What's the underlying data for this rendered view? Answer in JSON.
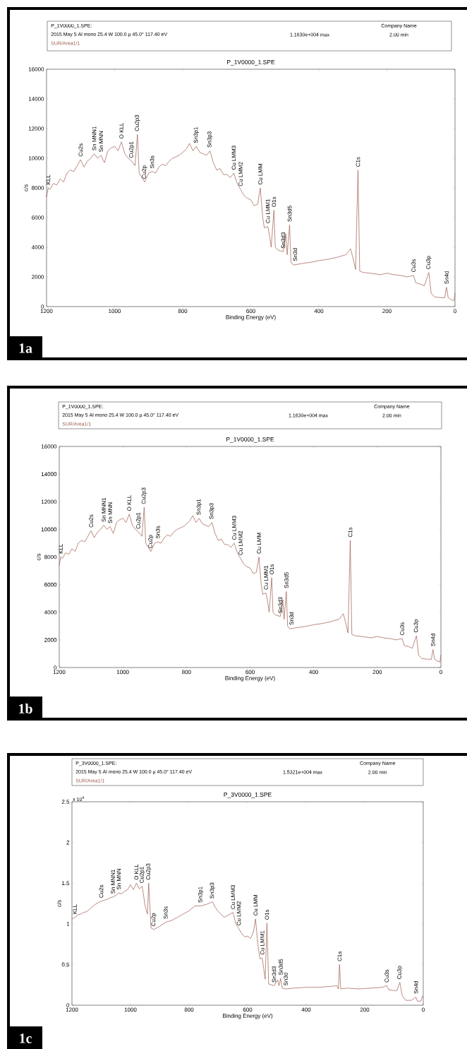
{
  "chart_data": [
    {
      "type": "line",
      "title": "P_1V0000_1.SPE",
      "xlabel": "Binding Energy (eV)",
      "ylabel": "c/s",
      "xlim": [
        1200,
        0
      ],
      "xticks": [
        1200,
        1000,
        800,
        600,
        400,
        200,
        0
      ],
      "ylim": [
        0,
        16000
      ],
      "yticks": [
        0,
        2000,
        4000,
        6000,
        8000,
        10000,
        12000,
        14000,
        16000
      ],
      "x": [
        1200,
        1195,
        1190,
        1180,
        1170,
        1160,
        1150,
        1140,
        1130,
        1120,
        1110,
        1100,
        1090,
        1080,
        1070,
        1060,
        1050,
        1040,
        1030,
        1020,
        1010,
        1000,
        990,
        980,
        970,
        960,
        950,
        940,
        933,
        928,
        920,
        912,
        900,
        890,
        880,
        870,
        860,
        850,
        840,
        830,
        820,
        810,
        800,
        790,
        780,
        770,
        760,
        750,
        740,
        730,
        720,
        710,
        700,
        690,
        680,
        670,
        660,
        650,
        640,
        630,
        620,
        610,
        600,
        590,
        580,
        572,
        565,
        560,
        550,
        545,
        540,
        532,
        528,
        520,
        505,
        497,
        493,
        486,
        482,
        475,
        450,
        420,
        400,
        370,
        350,
        320,
        307,
        300,
        292,
        285,
        280,
        270,
        250,
        220,
        200,
        180,
        160,
        140,
        122,
        115,
        100,
        90,
        77,
        70,
        60,
        40,
        30,
        25,
        20,
        10,
        3,
        0
      ],
      "series": [
        {
          "name": "SUR/Area1/1",
          "color": "#9c5a4a",
          "values": [
            7400,
            8000,
            7900,
            8300,
            8200,
            8600,
            8400,
            9000,
            9200,
            9100,
            9500,
            9900,
            9400,
            9800,
            10000,
            10300,
            10000,
            10200,
            9700,
            10500,
            10700,
            10800,
            10500,
            11100,
            10300,
            10000,
            9800,
            9500,
            11600,
            9000,
            8700,
            8400,
            9000,
            9100,
            9000,
            9400,
            9600,
            9500,
            9800,
            10000,
            10100,
            10200,
            10400,
            10600,
            11000,
            10500,
            10800,
            10400,
            10300,
            10200,
            10500,
            9700,
            9200,
            9300,
            8900,
            8900,
            8700,
            9000,
            8300,
            7900,
            7500,
            7300,
            7200,
            6800,
            6900,
            8000,
            6000,
            5300,
            5400,
            4800,
            4000,
            6500,
            4000,
            3800,
            3700,
            4900,
            3500,
            5500,
            3000,
            2800,
            2900,
            3000,
            3100,
            3200,
            3300,
            3500,
            3900,
            3300,
            2500,
            9200,
            2400,
            2300,
            2250,
            2150,
            2250,
            2150,
            2100,
            2000,
            2100,
            1600,
            1500,
            1400,
            2300,
            900,
            650,
            600,
            600,
            1300,
            600,
            450,
            400,
            900
          ]
        }
      ],
      "annotations": [
        "P_1V0000_1.SPE:",
        "2015 May 5 Al mono 25.4 W 100.0 µ 45.0° 117.40 eV",
        "1.1630e+004 max",
        "Company Name",
        "2.00 min",
        "1a",
        {
          "text": "KLL",
          "x": 1195,
          "y": 8000
        },
        {
          "text": "Cu2s",
          "x": 1100,
          "y": 9900
        },
        {
          "text": "Sn MNN1",
          "x": 1060,
          "y": 10300
        },
        {
          "text": "Sn MNN",
          "x": 1040,
          "y": 10200
        },
        {
          "text": "O KLL",
          "x": 980,
          "y": 11100
        },
        {
          "text": "Cu2p1",
          "x": 950,
          "y": 9800
        },
        {
          "text": "Cu2p3",
          "x": 933,
          "y": 11600
        },
        {
          "text": "Cu2p",
          "x": 912,
          "y": 8400
        },
        {
          "text": "Sn3s",
          "x": 890,
          "y": 9100
        },
        {
          "text": "Sn3p1",
          "x": 760,
          "y": 10800
        },
        {
          "text": "Sn3p3",
          "x": 720,
          "y": 10500
        },
        {
          "text": "Cu LMM3",
          "x": 650,
          "y": 9000
        },
        {
          "text": "Cu LMM2",
          "x": 630,
          "y": 7900
        },
        {
          "text": "Cu LMM",
          "x": 572,
          "y": 8000
        },
        {
          "text": "Cu LMM1",
          "x": 550,
          "y": 5400
        },
        {
          "text": "O1s",
          "x": 532,
          "y": 6500
        },
        {
          "text": "Sn3d5",
          "x": 486,
          "y": 5500
        },
        {
          "text": "Sn3d3",
          "x": 505,
          "y": 3700
        },
        {
          "text": "Sn3d",
          "x": 470,
          "y": 2850
        },
        {
          "text": "C1s",
          "x": 285,
          "y": 9200
        },
        {
          "text": "Cu3s",
          "x": 122,
          "y": 2100
        },
        {
          "text": "Cu3p",
          "x": 77,
          "y": 2300
        },
        {
          "text": "Sn4d",
          "x": 25,
          "y": 1300
        }
      ]
    },
    {
      "type": "line",
      "title": "P_1V0000_1.SPE",
      "xlabel": "Binding Energy (eV)",
      "ylabel": "c/s",
      "xlim": [
        1200,
        0
      ],
      "xticks": [
        1200,
        1000,
        800,
        600,
        400,
        200,
        0
      ],
      "ylim": [
        0,
        16000
      ],
      "yticks": [
        0,
        2000,
        4000,
        6000,
        8000,
        10000,
        12000,
        14000,
        16000
      ],
      "x": [
        1200,
        1195,
        1190,
        1180,
        1170,
        1160,
        1150,
        1140,
        1130,
        1120,
        1110,
        1100,
        1090,
        1080,
        1070,
        1060,
        1050,
        1040,
        1030,
        1020,
        1010,
        1000,
        990,
        980,
        970,
        960,
        950,
        940,
        933,
        928,
        920,
        912,
        900,
        890,
        880,
        870,
        860,
        850,
        840,
        830,
        820,
        810,
        800,
        790,
        780,
        770,
        760,
        750,
        740,
        730,
        720,
        710,
        700,
        690,
        680,
        670,
        660,
        650,
        640,
        630,
        620,
        610,
        600,
        590,
        580,
        572,
        565,
        560,
        550,
        545,
        540,
        532,
        528,
        520,
        505,
        497,
        493,
        486,
        482,
        475,
        450,
        420,
        400,
        370,
        350,
        320,
        307,
        300,
        292,
        285,
        280,
        270,
        250,
        220,
        200,
        180,
        160,
        140,
        122,
        115,
        100,
        90,
        77,
        70,
        60,
        40,
        30,
        25,
        20,
        10,
        3,
        0
      ],
      "series": [
        {
          "name": "SUR/Area1/1",
          "color": "#9c5a4a",
          "values": [
            7400,
            8000,
            7900,
            8300,
            8200,
            8600,
            8400,
            9000,
            9200,
            9100,
            9500,
            9900,
            9400,
            9800,
            10000,
            10300,
            10000,
            10200,
            9700,
            10500,
            10700,
            10800,
            10500,
            11100,
            10300,
            10000,
            9800,
            9500,
            11600,
            9000,
            8700,
            8400,
            9000,
            9100,
            9000,
            9400,
            9600,
            9500,
            9800,
            10000,
            10100,
            10200,
            10400,
            10600,
            11000,
            10500,
            10800,
            10400,
            10300,
            10200,
            10500,
            9700,
            9200,
            9300,
            8900,
            8900,
            8700,
            9000,
            8300,
            7900,
            7500,
            7300,
            7200,
            6800,
            6900,
            8000,
            6000,
            5300,
            5400,
            4800,
            4000,
            6500,
            4000,
            3800,
            3700,
            4900,
            3500,
            5500,
            3000,
            2800,
            2900,
            3000,
            3100,
            3200,
            3300,
            3500,
            3900,
            3300,
            2500,
            9200,
            2400,
            2300,
            2250,
            2150,
            2250,
            2150,
            2100,
            2000,
            2100,
            1600,
            1500,
            1400,
            2300,
            900,
            650,
            600,
            600,
            1300,
            600,
            450,
            400,
            900
          ]
        }
      ],
      "annotations": [
        "P_1V0000_1.SPE:",
        "2015 May 5 Al mono 25.4 W 100.0 µ 45.0° 117.40 eV",
        "1.1630e+004 max",
        "Company Name",
        "2.00 min",
        "1b",
        {
          "text": "KLL",
          "x": 1195,
          "y": 8000
        },
        {
          "text": "Cu2s",
          "x": 1100,
          "y": 9900
        },
        {
          "text": "Sn MNN1",
          "x": 1060,
          "y": 10300
        },
        {
          "text": "Sn MNN",
          "x": 1040,
          "y": 10200
        },
        {
          "text": "O KLL",
          "x": 980,
          "y": 11100
        },
        {
          "text": "Cu2p1",
          "x": 950,
          "y": 9800
        },
        {
          "text": "Cu2p3",
          "x": 933,
          "y": 11600
        },
        {
          "text": "Cu2p",
          "x": 912,
          "y": 8400
        },
        {
          "text": "Sn3s",
          "x": 890,
          "y": 9100
        },
        {
          "text": "Sn3p1",
          "x": 760,
          "y": 10800
        },
        {
          "text": "Sn3p3",
          "x": 720,
          "y": 10500
        },
        {
          "text": "Cu LMM3",
          "x": 650,
          "y": 9000
        },
        {
          "text": "Cu LMM2",
          "x": 630,
          "y": 7900
        },
        {
          "text": "Cu LMM",
          "x": 572,
          "y": 8000
        },
        {
          "text": "Cu LMM1",
          "x": 550,
          "y": 5400
        },
        {
          "text": "O1s",
          "x": 532,
          "y": 6500
        },
        {
          "text": "Sn3d5",
          "x": 486,
          "y": 5500
        },
        {
          "text": "Sn3d3",
          "x": 505,
          "y": 3700
        },
        {
          "text": "Sn3d",
          "x": 470,
          "y": 2850
        },
        {
          "text": "C1s",
          "x": 285,
          "y": 9200
        },
        {
          "text": "Cu3s",
          "x": 122,
          "y": 2100
        },
        {
          "text": "Cu3p",
          "x": 77,
          "y": 2300
        },
        {
          "text": "Sn4d",
          "x": 25,
          "y": 1300
        }
      ]
    },
    {
      "type": "line",
      "title": "P_3V0000_1.SPE",
      "xlabel": "Binding Energy (eV)",
      "ylabel": "c/s",
      "xlim": [
        1200,
        0
      ],
      "xticks": [
        1200,
        1000,
        800,
        600,
        400,
        200,
        0
      ],
      "ylim": [
        0,
        2.5
      ],
      "yticks": [
        0,
        0.5,
        1,
        1.5,
        2,
        2.5
      ],
      "x": [
        1200,
        1190,
        1180,
        1170,
        1160,
        1150,
        1140,
        1130,
        1120,
        1110,
        1100,
        1090,
        1080,
        1070,
        1060,
        1050,
        1040,
        1030,
        1020,
        1010,
        1000,
        990,
        980,
        970,
        960,
        950,
        942,
        938,
        930,
        920,
        900,
        880,
        860,
        840,
        820,
        800,
        780,
        760,
        740,
        720,
        710,
        700,
        680,
        670,
        660,
        650,
        640,
        630,
        620,
        610,
        600,
        590,
        580,
        573,
        565,
        558,
        550,
        545,
        540,
        534,
        528,
        510,
        497,
        493,
        487,
        482,
        470,
        440,
        400,
        360,
        320,
        295,
        290,
        286,
        282,
        260,
        220,
        180,
        140,
        125,
        118,
        100,
        90,
        80,
        72,
        60,
        40,
        25,
        20,
        8,
        3,
        0
      ],
      "series": [
        {
          "name": "SUR/Area1/1",
          "color": "#9c5a4a",
          "values": [
            1.06,
            1.08,
            1.11,
            1.12,
            1.14,
            1.15,
            1.18,
            1.21,
            1.24,
            1.26,
            1.28,
            1.29,
            1.3,
            1.32,
            1.33,
            1.35,
            1.38,
            1.37,
            1.4,
            1.42,
            1.48,
            1.42,
            1.5,
            1.43,
            1.46,
            1.22,
            1.12,
            1.5,
            0.95,
            0.93,
            0.97,
            1.02,
            1.04,
            1.08,
            1.12,
            1.16,
            1.22,
            1.22,
            1.24,
            1.27,
            1.2,
            1.15,
            1.08,
            1.1,
            1.12,
            1.14,
            1.0,
            0.94,
            0.88,
            0.84,
            0.85,
            0.82,
            0.9,
            1.06,
            0.75,
            0.57,
            0.58,
            0.45,
            0.32,
            1.01,
            0.26,
            0.24,
            0.31,
            0.24,
            0.33,
            0.21,
            0.2,
            0.21,
            0.22,
            0.22,
            0.23,
            0.24,
            0.2,
            0.5,
            0.2,
            0.21,
            0.2,
            0.21,
            0.22,
            0.24,
            0.19,
            0.18,
            0.18,
            0.28,
            0.12,
            0.06,
            0.06,
            0.1,
            0.05,
            0.05,
            0.11,
            0.1
          ]
        }
      ],
      "annotations": [
        "P_3V0000_1.SPE:",
        "2015 May 5 Al mono 25.4 W 100.0 µ 45.0° 117.40 eV",
        "1.5321e+004 max",
        "Company Name",
        "2.00 min",
        "1c",
        "x 10$^{4}$",
        {
          "text": "KLL",
          "x": 1190,
          "y": 1.08
        },
        {
          "text": "Cu2s",
          "x": 1100,
          "y": 1.28
        },
        {
          "text": "Sn MNN1",
          "x": 1060,
          "y": 1.33
        },
        {
          "text": "Sn MNN",
          "x": 1040,
          "y": 1.38
        },
        {
          "text": "O KLL",
          "x": 980,
          "y": 1.5
        },
        {
          "text": "Cu2p1",
          "x": 960,
          "y": 1.46
        },
        {
          "text": "Cu2p3",
          "x": 938,
          "y": 1.5
        },
        {
          "text": "Cu2p",
          "x": 920,
          "y": 0.93
        },
        {
          "text": "Sn3s",
          "x": 880,
          "y": 1.02
        },
        {
          "text": "Sn3p1",
          "x": 760,
          "y": 1.22
        },
        {
          "text": "Sn3p3",
          "x": 720,
          "y": 1.27
        },
        {
          "text": "Cu LMM3",
          "x": 650,
          "y": 1.14
        },
        {
          "text": "Cu LMM2",
          "x": 630,
          "y": 0.94
        },
        {
          "text": "Cu LMM",
          "x": 573,
          "y": 1.06
        },
        {
          "text": "Cu LMM1",
          "x": 550,
          "y": 0.58
        },
        {
          "text": "O1s",
          "x": 534,
          "y": 1.01
        },
        {
          "text": "Sn3d5",
          "x": 487,
          "y": 0.33
        },
        {
          "text": "Sn3d3",
          "x": 510,
          "y": 0.24
        },
        {
          "text": "Sn3d",
          "x": 470,
          "y": 0.2
        },
        {
          "text": "C1s",
          "x": 286,
          "y": 0.5
        },
        {
          "text": "Cu3s",
          "x": 125,
          "y": 0.24
        },
        {
          "text": "Cu3p",
          "x": 80,
          "y": 0.28
        },
        {
          "text": "Sn4d",
          "x": 25,
          "y": 0.1
        }
      ]
    }
  ]
}
